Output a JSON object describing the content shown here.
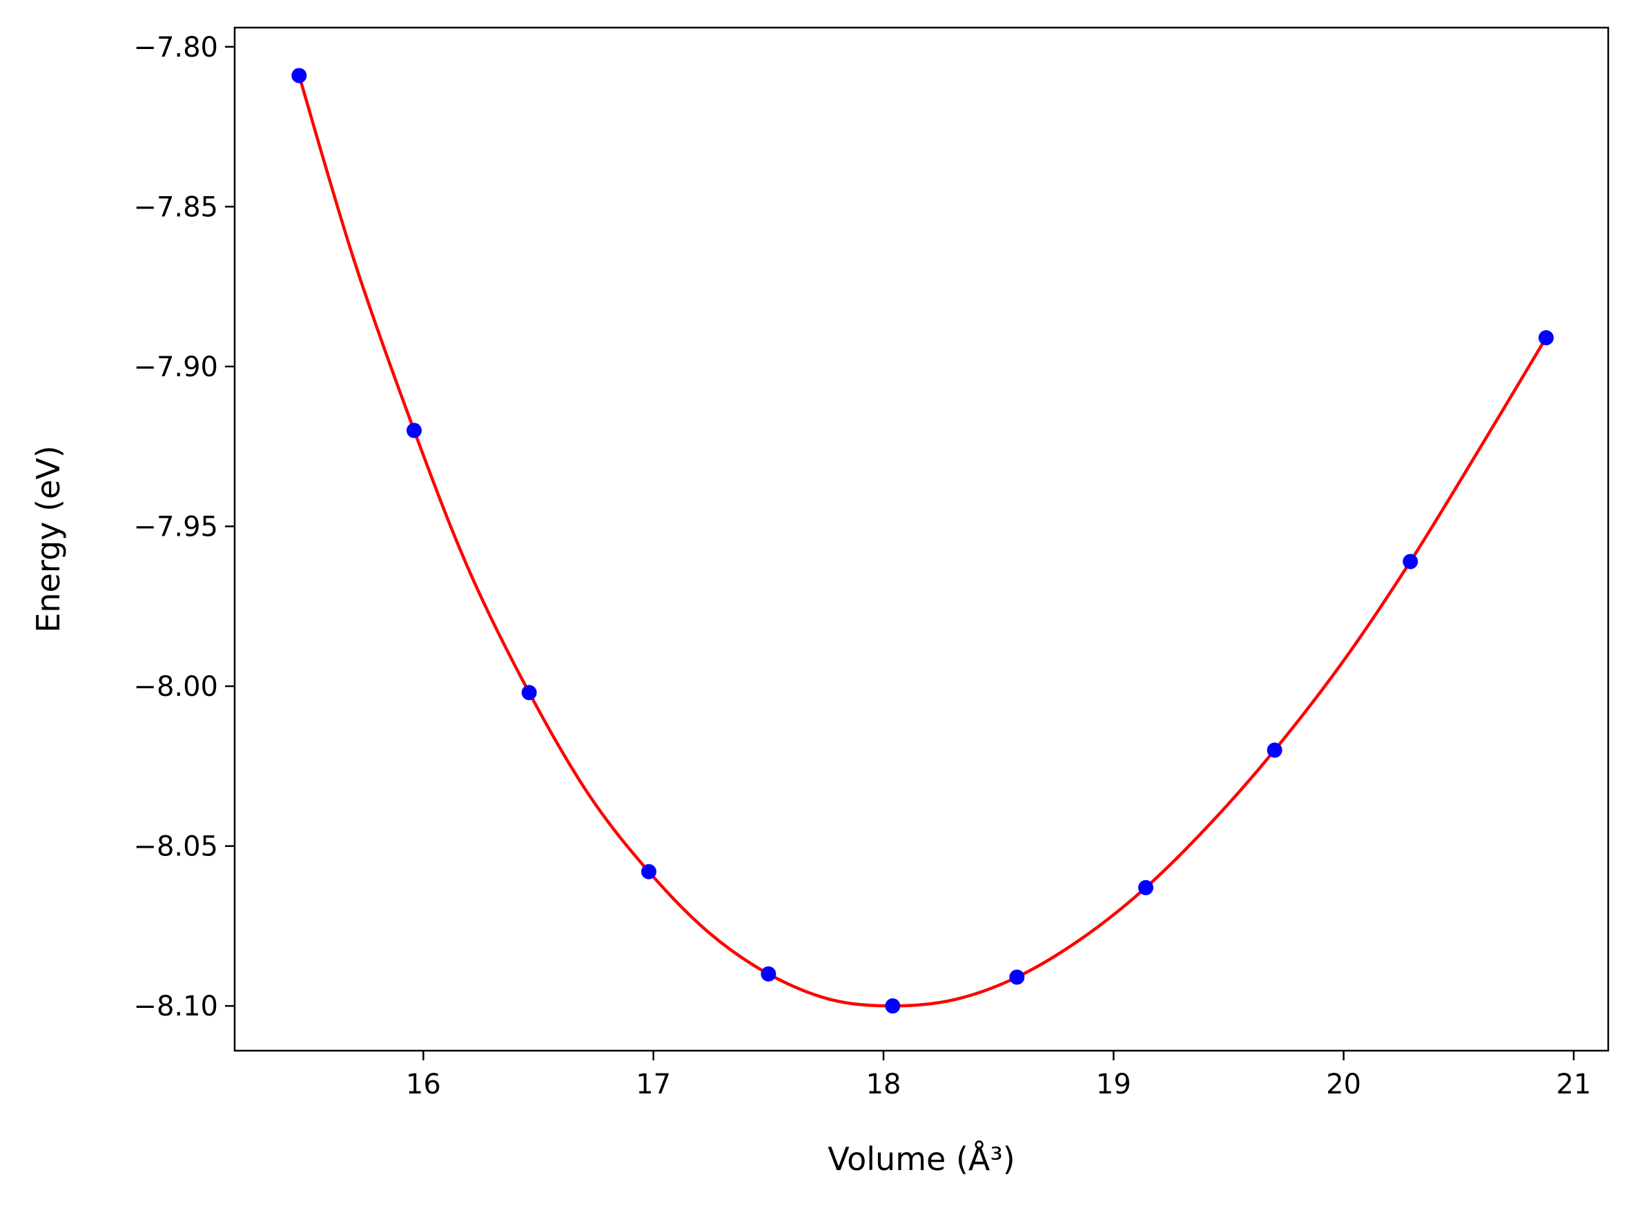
{
  "chart_data": {
    "type": "line",
    "xlabel": "Volume (Å³)",
    "ylabel": "Energy (eV)",
    "xlim": [
      15.18,
      21.15
    ],
    "ylim": [
      -8.114,
      -7.794
    ],
    "grid": false,
    "x_ticks": [
      16,
      17,
      18,
      19,
      20,
      21
    ],
    "x_tick_labels": [
      "16",
      "17",
      "18",
      "19",
      "20",
      "21"
    ],
    "y_ticks": [
      -7.8,
      -7.85,
      -7.9,
      -7.95,
      -8.0,
      -8.05,
      -8.1
    ],
    "y_tick_labels": [
      "−7.80",
      "−7.85",
      "−7.90",
      "−7.95",
      "−8.00",
      "−8.05",
      "−8.10"
    ],
    "series": [
      {
        "kind": "points",
        "color": "#0000ff",
        "x": [
          15.46,
          15.96,
          16.46,
          16.98,
          17.5,
          18.04,
          18.58,
          19.14,
          19.7,
          20.29,
          20.88
        ],
        "y": [
          -7.809,
          -7.92,
          -8.002,
          -8.058,
          -8.09,
          -8.1,
          -8.091,
          -8.063,
          -8.02,
          -7.961,
          -7.891
        ]
      },
      {
        "kind": "fit-curve",
        "color": "#ff0000",
        "x": [
          15.46,
          15.7,
          15.96,
          16.2,
          16.46,
          16.72,
          16.98,
          17.24,
          17.5,
          17.77,
          18.04,
          18.31,
          18.58,
          18.86,
          19.14,
          19.42,
          19.7,
          20.0,
          20.29,
          20.58,
          20.88
        ],
        "y": [
          -7.809,
          -7.867,
          -7.92,
          -7.964,
          -8.002,
          -8.034,
          -8.058,
          -8.077,
          -8.09,
          -8.098,
          -8.1,
          -8.098,
          -8.091,
          -8.079,
          -8.063,
          -8.043,
          -8.02,
          -7.992,
          -7.961,
          -7.927,
          -7.891
        ]
      }
    ]
  }
}
